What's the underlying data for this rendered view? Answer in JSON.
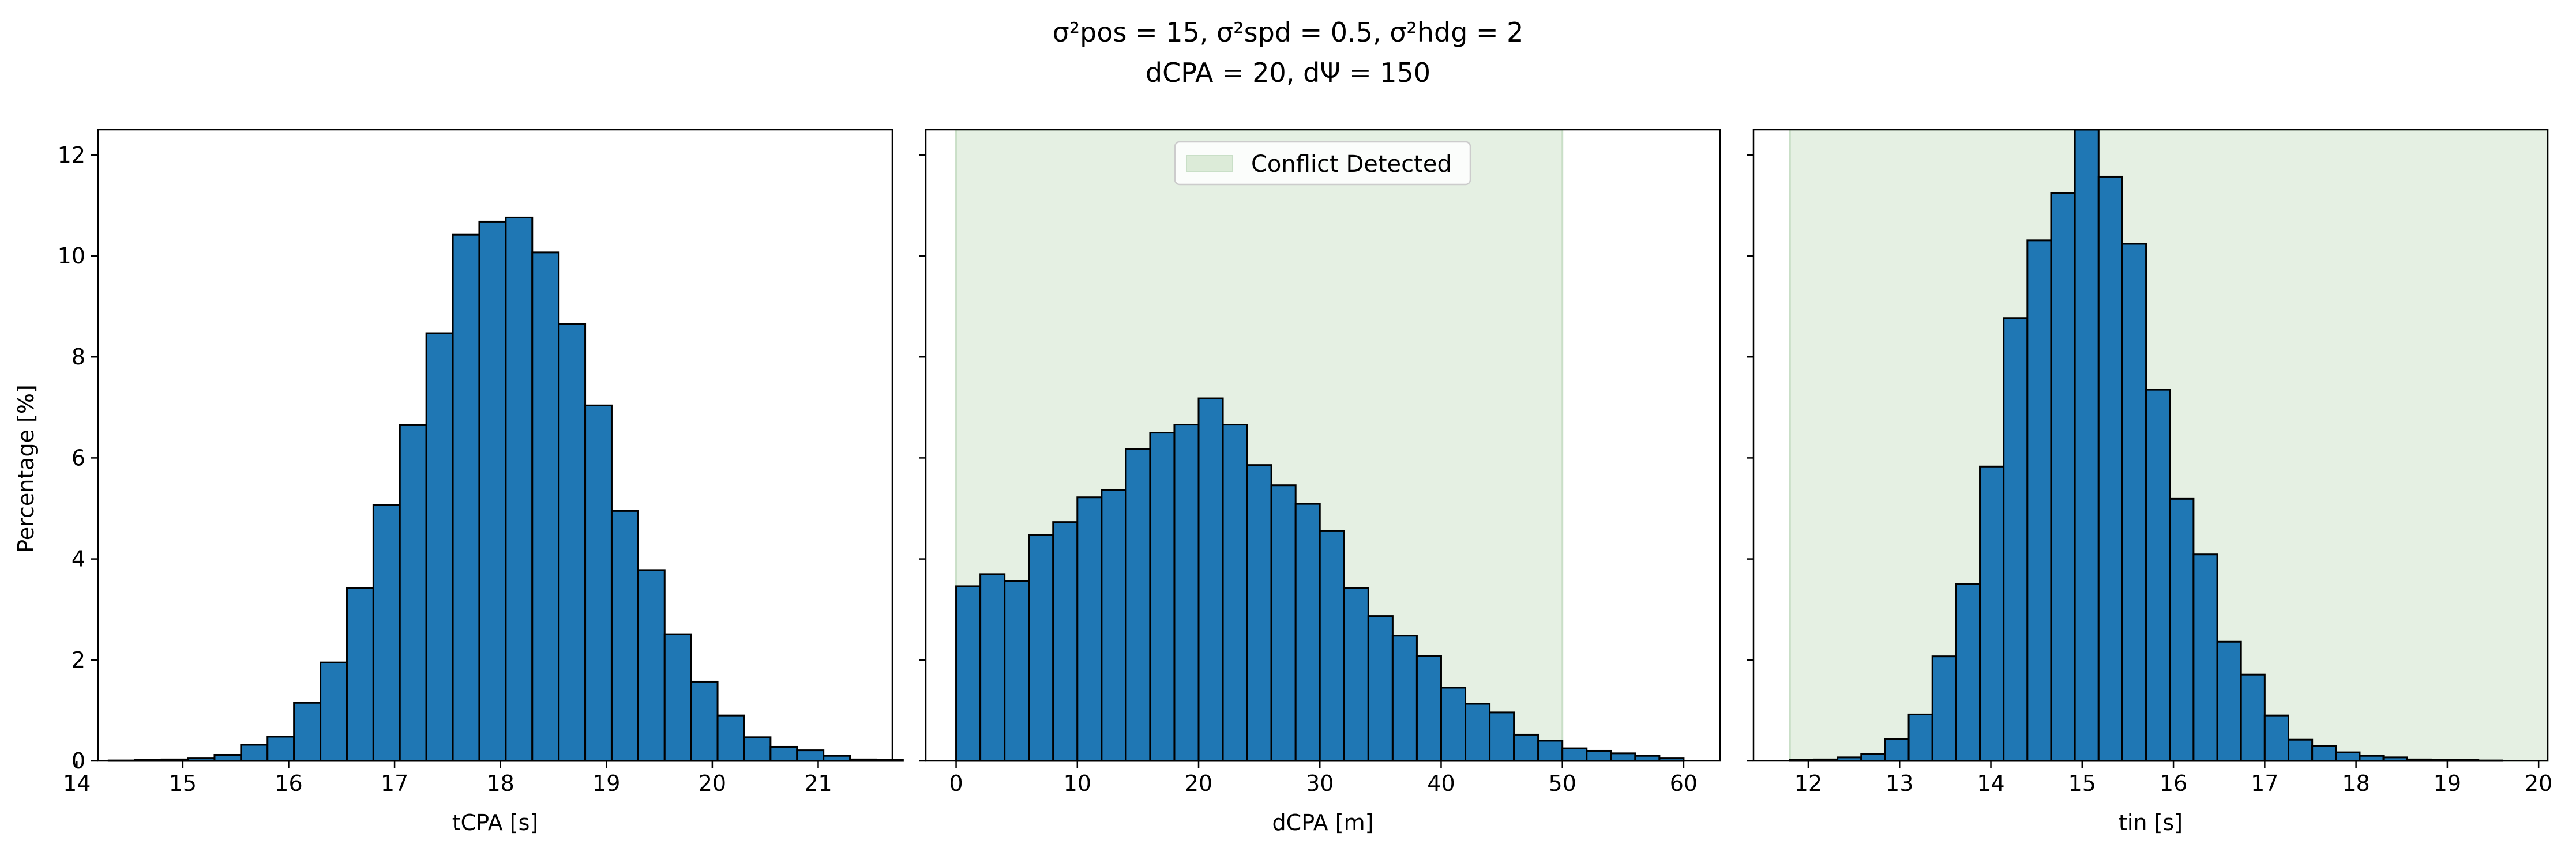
{
  "figure_title": {
    "line1": "σ²pos = 15, σ²spd = 0.5, σ²hdg = 2",
    "line2": "dCPA = 20, dΨ = 150"
  },
  "ylabel": "Percentage [%]",
  "colors": {
    "bar_fill": "#1f77b4",
    "bar_edge": "#000000",
    "shade": "#e5f0e3",
    "shade_edge": "#c9dfc7",
    "legend_swatch": "#dcebd8"
  },
  "chart_data": [
    {
      "type": "bar",
      "subtype": "histogram",
      "xlabel": "tCPA [s]",
      "xlim": [
        14.2,
        21.7
      ],
      "ylim": [
        0,
        12.5
      ],
      "xticks": [
        14,
        15,
        16,
        17,
        18,
        19,
        20,
        21
      ],
      "yticks": [
        0,
        2,
        4,
        6,
        8,
        10,
        12
      ],
      "bin_start": 14.3,
      "bin_width": 0.25,
      "values": [
        0.01,
        0.02,
        0.03,
        0.05,
        0.12,
        0.32,
        0.48,
        1.15,
        1.95,
        3.42,
        5.07,
        6.65,
        8.47,
        10.42,
        10.68,
        10.76,
        10.07,
        8.65,
        7.04,
        4.95,
        3.78,
        2.51,
        1.57,
        0.9,
        0.47,
        0.28,
        0.21,
        0.1,
        0.03,
        0.02
      ]
    },
    {
      "type": "bar",
      "subtype": "histogram",
      "xlabel": "dCPA [m]",
      "xlim": [
        -2.5,
        63
      ],
      "ylim": [
        0,
        12.5
      ],
      "xticks": [
        0,
        10,
        20,
        30,
        40,
        50,
        60
      ],
      "yticks": [
        0,
        2,
        4,
        6,
        8,
        10,
        12
      ],
      "bin_start": 0,
      "bin_width": 2,
      "values": [
        3.46,
        3.7,
        3.56,
        4.48,
        4.73,
        5.22,
        5.36,
        6.18,
        6.5,
        6.66,
        7.18,
        6.66,
        5.86,
        5.46,
        5.09,
        4.55,
        3.42,
        2.87,
        2.48,
        2.08,
        1.45,
        1.13,
        0.96,
        0.52,
        0.4,
        0.25,
        0.2,
        0.15,
        0.1,
        0.05
      ],
      "shaded_region": [
        0,
        50
      ],
      "legend_label": "Conflict Detected"
    },
    {
      "type": "bar",
      "subtype": "histogram",
      "xlabel": "tin [s]",
      "xlim": [
        11.4,
        20.1
      ],
      "ylim": [
        0,
        12.5
      ],
      "xticks": [
        12,
        13,
        14,
        15,
        16,
        17,
        18,
        19,
        20
      ],
      "yticks": [
        0,
        2,
        4,
        6,
        8,
        10,
        12
      ],
      "bin_start": 11.8,
      "bin_width": 0.26,
      "values": [
        0.02,
        0.03,
        0.07,
        0.14,
        0.43,
        0.92,
        2.07,
        3.5,
        5.83,
        8.77,
        10.31,
        11.25,
        12.5,
        11.57,
        10.24,
        7.35,
        5.19,
        4.09,
        2.36,
        1.71,
        0.9,
        0.42,
        0.3,
        0.17,
        0.1,
        0.07,
        0.03,
        0.02,
        0.02,
        0.01
      ],
      "shaded_region": [
        11.8,
        20.1
      ]
    }
  ]
}
